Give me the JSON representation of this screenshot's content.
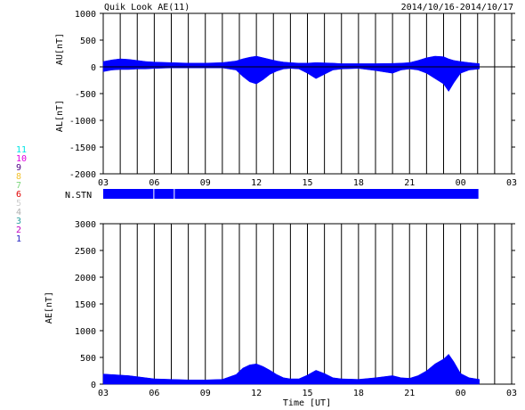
{
  "header": {
    "title": "Quik Look AE(11)",
    "date_range": "2014/10/16-2014/10/17"
  },
  "station_legend": [
    {
      "label": "11",
      "color": "#00e5e5"
    },
    {
      "label": "10",
      "color": "#e000e0"
    },
    {
      "label": "9",
      "color": "#4b0082"
    },
    {
      "label": "8",
      "color": "#f2c230"
    },
    {
      "label": "7",
      "color": "#7cd67c"
    },
    {
      "label": "6",
      "color": "#e00000"
    },
    {
      "label": "5",
      "color": "#cfcfcf"
    },
    {
      "label": "4",
      "color": "#b0b0b0"
    },
    {
      "label": "3",
      "color": "#2aa0a0"
    },
    {
      "label": "2",
      "color": "#c000c0"
    },
    {
      "label": "1",
      "color": "#2020c0"
    }
  ],
  "colors": {
    "fill": "#0000ff",
    "axes": "#000000",
    "background": "#ffffff"
  },
  "chart_data": [
    {
      "type": "area",
      "ylabel_top": "AU[nT]",
      "ylabel_bottom": "AL[nT]",
      "ylim": [
        -2000,
        1000
      ],
      "yticks": [
        "1000",
        "500",
        "0",
        "-500",
        "-1000",
        "-1500",
        "-2000"
      ],
      "x_hour_range": [
        3,
        27
      ],
      "xticks": [
        "03",
        "06",
        "09",
        "12",
        "15",
        "18",
        "21",
        "00",
        "03"
      ],
      "grid": "vertical-hourly",
      "data_end_hour": 25.1,
      "au": {
        "x": [
          3,
          3.5,
          4,
          4.5,
          5,
          5.5,
          6,
          7,
          8,
          9,
          10,
          10.8,
          11.2,
          11.6,
          12,
          12.4,
          12.8,
          13.2,
          13.6,
          14,
          14.5,
          15,
          15.5,
          16,
          16.5,
          17,
          18,
          19,
          20,
          20.5,
          21,
          21.5,
          22,
          22.5,
          23,
          23.3,
          23.6,
          24,
          24.5,
          25.1
        ],
        "y": [
          100,
          130,
          150,
          140,
          120,
          100,
          90,
          80,
          70,
          70,
          80,
          110,
          150,
          180,
          200,
          170,
          140,
          110,
          90,
          80,
          70,
          70,
          80,
          75,
          70,
          60,
          60,
          60,
          65,
          70,
          80,
          120,
          170,
          200,
          190,
          150,
          120,
          100,
          80,
          60
        ]
      },
      "al": {
        "x": [
          3,
          3.5,
          4,
          4.5,
          5,
          5.5,
          6,
          7,
          8,
          9,
          10,
          10.8,
          11.2,
          11.6,
          12,
          12.4,
          12.8,
          13.2,
          13.6,
          14,
          14.5,
          15,
          15.5,
          16,
          16.5,
          17,
          18,
          19,
          20,
          20.5,
          21,
          21.5,
          22,
          22.5,
          23,
          23.3,
          23.6,
          24,
          24.5,
          25.1
        ],
        "y": [
          -90,
          -60,
          -50,
          -50,
          -40,
          -40,
          -30,
          -20,
          -20,
          -20,
          -20,
          -60,
          -180,
          -280,
          -320,
          -240,
          -140,
          -80,
          -40,
          -30,
          -40,
          -120,
          -220,
          -140,
          -60,
          -40,
          -30,
          -70,
          -120,
          -60,
          -40,
          -60,
          -120,
          -220,
          -320,
          -460,
          -300,
          -120,
          -60,
          -40
        ]
      }
    },
    {
      "type": "bar",
      "ylabel": "N.STN",
      "x_hour_range": [
        3,
        27
      ],
      "data_end_hour": 25.1,
      "gaps_hours": [
        6.0,
        7.2
      ]
    },
    {
      "type": "area",
      "ylabel": "AE[nT]",
      "xlabel": "Time [UT]",
      "ylim": [
        0,
        3000
      ],
      "yticks": [
        "3000",
        "2500",
        "2000",
        "1500",
        "1000",
        "500",
        "0"
      ],
      "x_hour_range": [
        3,
        27
      ],
      "xticks": [
        "03",
        "06",
        "09",
        "12",
        "15",
        "18",
        "21",
        "00",
        "03"
      ],
      "grid": "vertical-hourly",
      "data_end_hour": 25.1,
      "ae": {
        "x": [
          3,
          3.5,
          4,
          4.5,
          5,
          5.5,
          6,
          7,
          8,
          9,
          10,
          10.8,
          11.2,
          11.6,
          12,
          12.4,
          12.8,
          13.2,
          13.6,
          14,
          14.5,
          15,
          15.5,
          16,
          16.5,
          17,
          18,
          19,
          20,
          20.5,
          21,
          21.5,
          22,
          22.5,
          23,
          23.3,
          23.6,
          24,
          24.5,
          25.1
        ],
        "y": [
          190,
          180,
          170,
          160,
          140,
          120,
          100,
          90,
          80,
          80,
          90,
          180,
          300,
          360,
          380,
          330,
          260,
          180,
          120,
          100,
          100,
          170,
          260,
          200,
          120,
          100,
          90,
          120,
          160,
          120,
          110,
          160,
          250,
          380,
          470,
          560,
          420,
          200,
          120,
          90
        ]
      }
    }
  ]
}
